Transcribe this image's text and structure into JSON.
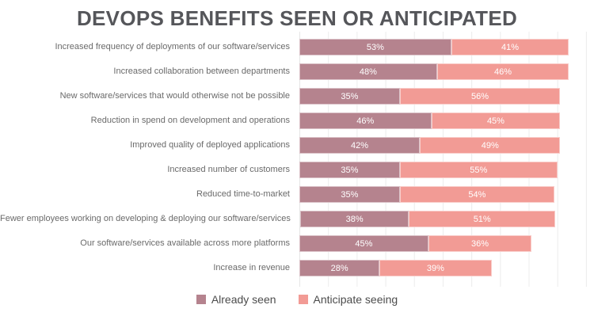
{
  "title": "DEVOPS BENEFITS SEEN OR ANTICIPATED",
  "chart_data": {
    "type": "bar",
    "orientation": "horizontal",
    "stacked": true,
    "title": "DEVOPS BENEFITS SEEN OR ANTICIPATED",
    "categories": [
      "Increased frequency of deployments of our software/services",
      "Increased collaboration between departments",
      "New software/services that would otherwise not be possible",
      "Reduction in spend on development and operations",
      "Improved quality of deployed applications",
      "Increased number of customers",
      "Reduced time-to-market",
      "Fewer employees working on developing & deploying our software/services",
      "Our software/services available across more platforms",
      "Increase in revenue"
    ],
    "series": [
      {
        "name": "Already seen",
        "color": "#b5838e",
        "values": [
          53,
          48,
          35,
          46,
          42,
          35,
          35,
          38,
          45,
          28
        ]
      },
      {
        "name": "Anticipate seeing",
        "color": "#f29b95",
        "values": [
          41,
          46,
          56,
          45,
          49,
          55,
          54,
          51,
          36,
          39
        ]
      }
    ],
    "value_suffix": "%",
    "xlim": [
      0,
      100
    ],
    "gridline_step_percent": 10,
    "grid": true,
    "legend_position": "bottom"
  }
}
